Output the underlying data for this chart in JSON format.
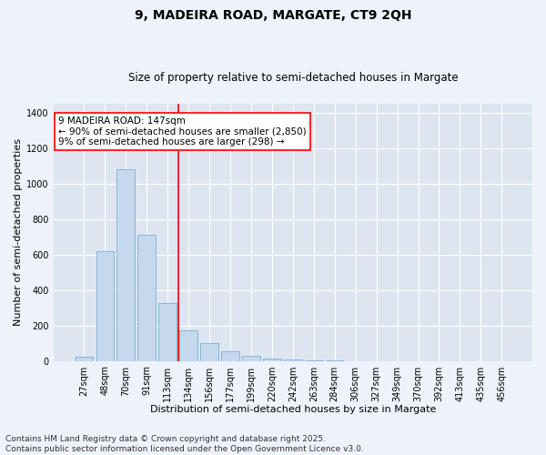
{
  "title": "9, MADEIRA ROAD, MARGATE, CT9 2QH",
  "subtitle": "Size of property relative to semi-detached houses in Margate",
  "xlabel": "Distribution of semi-detached houses by size in Margate",
  "ylabel": "Number of semi-detached properties",
  "categories": [
    "27sqm",
    "48sqm",
    "70sqm",
    "91sqm",
    "113sqm",
    "134sqm",
    "156sqm",
    "177sqm",
    "199sqm",
    "220sqm",
    "242sqm",
    "263sqm",
    "284sqm",
    "306sqm",
    "327sqm",
    "349sqm",
    "370sqm",
    "392sqm",
    "413sqm",
    "435sqm",
    "456sqm"
  ],
  "values": [
    25,
    620,
    1080,
    710,
    325,
    170,
    100,
    55,
    28,
    13,
    6,
    3,
    2,
    0,
    0,
    0,
    0,
    0,
    0,
    0,
    0
  ],
  "bar_color": "#c5d8ed",
  "bar_edge_color": "#7aafd4",
  "vline_color": "red",
  "vline_x_index": 5,
  "annotation_text": "9 MADEIRA ROAD: 147sqm\n← 90% of semi-detached houses are smaller (2,850)\n9% of semi-detached houses are larger (298) →",
  "annotation_box_color": "white",
  "annotation_box_edge": "red",
  "ylim": [
    0,
    1450
  ],
  "yticks": [
    0,
    200,
    400,
    600,
    800,
    1000,
    1200,
    1400
  ],
  "footer": "Contains HM Land Registry data © Crown copyright and database right 2025.\nContains public sector information licensed under the Open Government Licence v3.0.",
  "bg_color": "#eef2fa",
  "plot_bg_color": "#dde5f0",
  "grid_color": "white",
  "title_fontsize": 10,
  "subtitle_fontsize": 8.5,
  "axis_label_fontsize": 8,
  "tick_fontsize": 7,
  "footer_fontsize": 6.5,
  "annotation_fontsize": 7.5
}
